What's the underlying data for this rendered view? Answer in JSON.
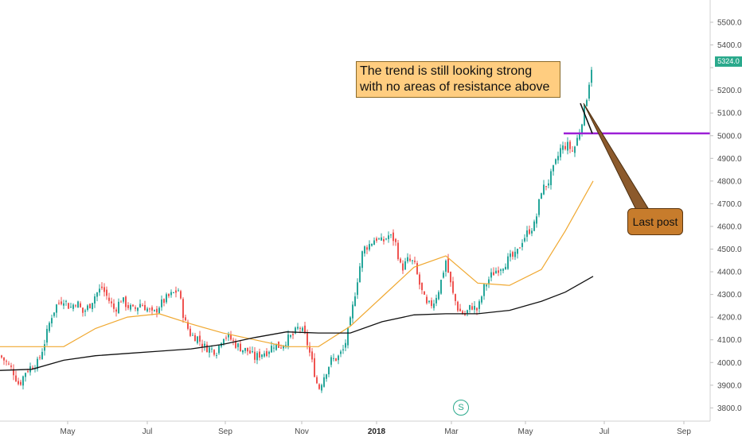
{
  "chart_data": {
    "type": "candlestick",
    "title": "",
    "xlabel": "",
    "ylabel": "",
    "ylim": [
      3760,
      5560
    ],
    "y_ticks": [
      "5500.0",
      "5400.0",
      "5300.0",
      "5200.0",
      "5100.0",
      "5000.0",
      "4900.0",
      "4800.0",
      "4700.0",
      "4600.0",
      "4500.0",
      "4400.0",
      "4300.0",
      "4200.0",
      "4100.0",
      "4000.0",
      "3900.0",
      "3800.0"
    ],
    "x_ticks": [
      "May",
      "Jul",
      "Sep",
      "Nov",
      "2018",
      "Mar",
      "May",
      "Jul",
      "Sep"
    ],
    "x_tick_bold": "2018",
    "last_price_label": "5324.0",
    "up_color": "#26a69a",
    "down_color": "#ef5350",
    "ma_short_color": "#f0a830",
    "ma_long_color": "#111111",
    "resistance_color": "#9c1fd6",
    "resistance_level": 5010,
    "grid": false,
    "price_path": [
      [
        0,
        4030
      ],
      [
        8,
        4000
      ],
      [
        16,
        3965
      ],
      [
        24,
        3900
      ],
      [
        32,
        3960
      ],
      [
        40,
        3985
      ],
      [
        48,
        4000
      ],
      [
        56,
        4090
      ],
      [
        64,
        4200
      ],
      [
        72,
        4260
      ],
      [
        80,
        4280
      ],
      [
        88,
        4240
      ],
      [
        96,
        4270
      ],
      [
        104,
        4220
      ],
      [
        112,
        4250
      ],
      [
        120,
        4300
      ],
      [
        128,
        4330
      ],
      [
        136,
        4280
      ],
      [
        144,
        4230
      ],
      [
        152,
        4280
      ],
      [
        160,
        4250
      ],
      [
        168,
        4230
      ],
      [
        176,
        4260
      ],
      [
        184,
        4240
      ],
      [
        192,
        4210
      ],
      [
        200,
        4250
      ],
      [
        208,
        4280
      ],
      [
        216,
        4300
      ],
      [
        224,
        4320
      ],
      [
        232,
        4180
      ],
      [
        240,
        4120
      ],
      [
        248,
        4110
      ],
      [
        256,
        4070
      ],
      [
        264,
        4060
      ],
      [
        272,
        4050
      ],
      [
        280,
        4120
      ],
      [
        288,
        4110
      ],
      [
        296,
        4080
      ],
      [
        304,
        4060
      ],
      [
        312,
        4050
      ],
      [
        320,
        4020
      ],
      [
        328,
        4040
      ],
      [
        336,
        4050
      ],
      [
        344,
        4080
      ],
      [
        352,
        4070
      ],
      [
        360,
        4100
      ],
      [
        368,
        4120
      ],
      [
        376,
        4160
      ],
      [
        384,
        4110
      ],
      [
        392,
        4000
      ],
      [
        400,
        3880
      ],
      [
        408,
        3950
      ],
      [
        416,
        4010
      ],
      [
        424,
        4020
      ],
      [
        432,
        4060
      ],
      [
        440,
        4180
      ],
      [
        448,
        4350
      ],
      [
        456,
        4500
      ],
      [
        464,
        4520
      ],
      [
        472,
        4550
      ],
      [
        480,
        4530
      ],
      [
        488,
        4560
      ],
      [
        496,
        4540
      ],
      [
        504,
        4410
      ],
      [
        512,
        4450
      ],
      [
        520,
        4440
      ],
      [
        528,
        4330
      ],
      [
        536,
        4250
      ],
      [
        544,
        4260
      ],
      [
        552,
        4330
      ],
      [
        560,
        4450
      ],
      [
        568,
        4310
      ],
      [
        576,
        4230
      ],
      [
        584,
        4210
      ],
      [
        592,
        4250
      ],
      [
        600,
        4230
      ],
      [
        608,
        4330
      ],
      [
        616,
        4380
      ],
      [
        624,
        4410
      ],
      [
        632,
        4430
      ],
      [
        640,
        4460
      ],
      [
        648,
        4470
      ],
      [
        656,
        4540
      ],
      [
        664,
        4580
      ],
      [
        672,
        4610
      ],
      [
        680,
        4760
      ],
      [
        688,
        4790
      ],
      [
        696,
        4860
      ],
      [
        704,
        4940
      ],
      [
        712,
        4960
      ],
      [
        720,
        4930
      ],
      [
        728,
        5020
      ],
      [
        736,
        5150
      ],
      [
        744,
        5324
      ]
    ],
    "ma_short": [
      [
        0,
        4070
      ],
      [
        40,
        4070
      ],
      [
        80,
        4070
      ],
      [
        120,
        4150
      ],
      [
        160,
        4200
      ],
      [
        200,
        4215
      ],
      [
        240,
        4170
      ],
      [
        280,
        4130
      ],
      [
        320,
        4100
      ],
      [
        360,
        4070
      ],
      [
        400,
        4070
      ],
      [
        440,
        4160
      ],
      [
        480,
        4290
      ],
      [
        520,
        4420
      ],
      [
        560,
        4470
      ],
      [
        600,
        4350
      ],
      [
        640,
        4340
      ],
      [
        680,
        4410
      ],
      [
        710,
        4580
      ],
      [
        745,
        4800
      ]
    ],
    "ma_long": [
      [
        0,
        3965
      ],
      [
        40,
        3970
      ],
      [
        80,
        4010
      ],
      [
        120,
        4030
      ],
      [
        160,
        4040
      ],
      [
        200,
        4050
      ],
      [
        240,
        4060
      ],
      [
        280,
        4080
      ],
      [
        320,
        4110
      ],
      [
        360,
        4135
      ],
      [
        400,
        4130
      ],
      [
        440,
        4130
      ],
      [
        480,
        4180
      ],
      [
        520,
        4210
      ],
      [
        560,
        4215
      ],
      [
        600,
        4215
      ],
      [
        640,
        4230
      ],
      [
        680,
        4270
      ],
      [
        710,
        4310
      ],
      [
        745,
        4380
      ]
    ],
    "annotations": [
      {
        "text": "The trend is still looking strong with no areas of resistance above"
      },
      {
        "text": "Last post"
      }
    ]
  },
  "overlay": {
    "annotation_line1": "The trend is still looking strong",
    "annotation_line2": "with no areas of resistance above",
    "callout_text": "Last post",
    "s_badge": "S"
  }
}
